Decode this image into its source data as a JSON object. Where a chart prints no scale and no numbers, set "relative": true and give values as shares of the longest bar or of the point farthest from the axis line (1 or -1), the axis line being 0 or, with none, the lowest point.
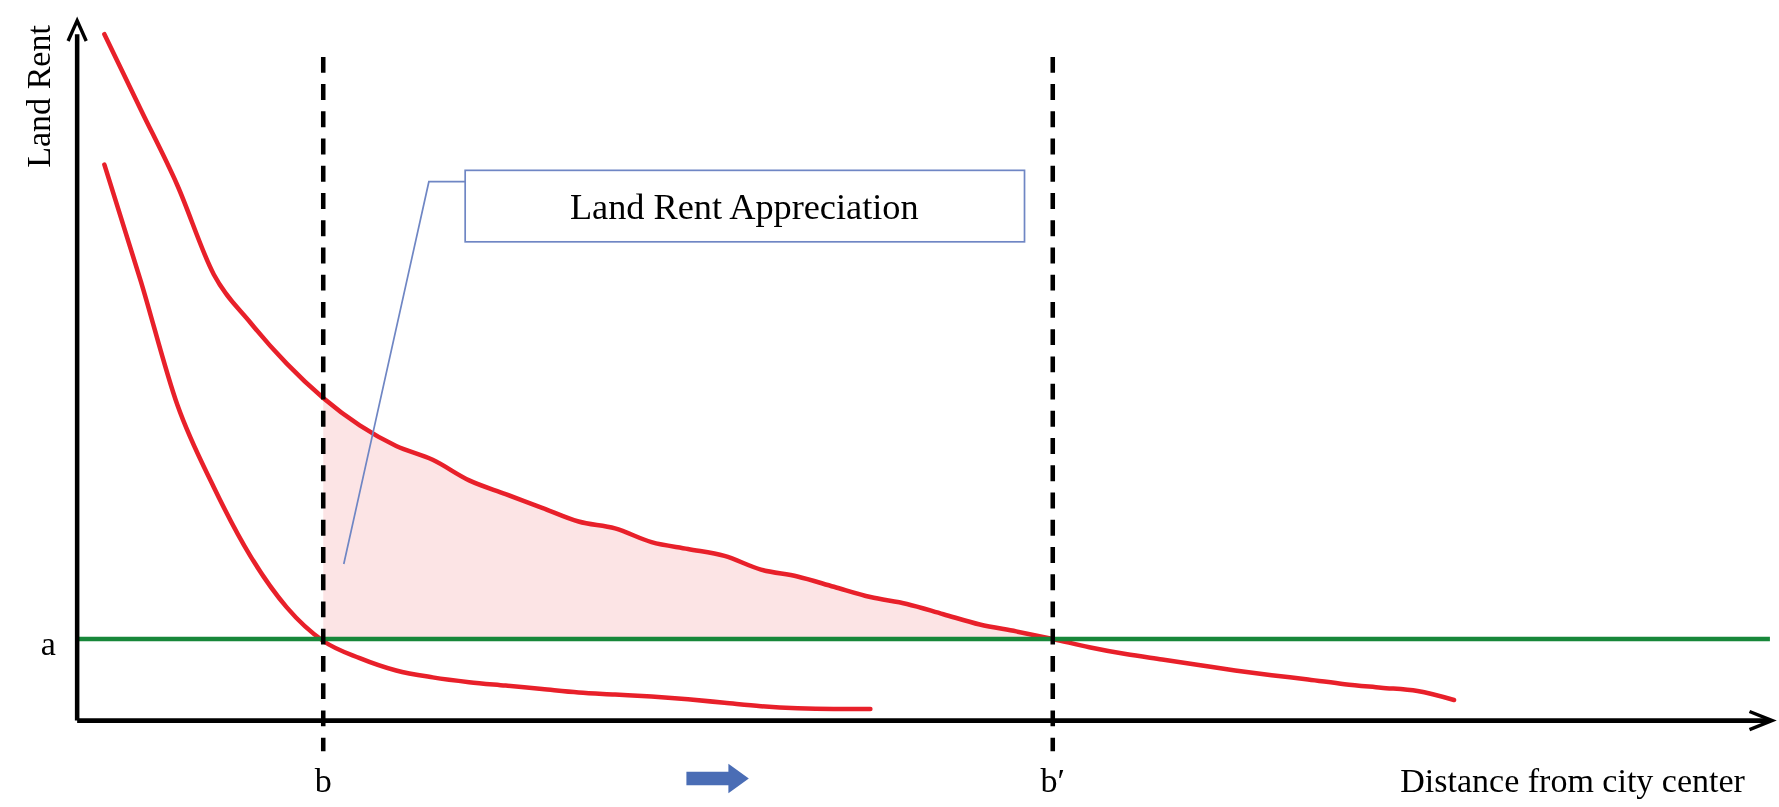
{
  "chart_data": {
    "type": "line",
    "relative": true,
    "xlabel": "Distance from city center",
    "ylabel": "Land Rent",
    "categories": [
      null,
      null,
      null,
      null,
      null,
      null,
      "b",
      null,
      null,
      null,
      null,
      null,
      null,
      null,
      null,
      null,
      null,
      null,
      null,
      null,
      null,
      null,
      null,
      null,
      null,
      null,
      "b′",
      null,
      null,
      null,
      null,
      null,
      null,
      null,
      null,
      null,
      null,
      null,
      null,
      null,
      null,
      null,
      null,
      null,
      null,
      null
    ],
    "series": [
      {
        "color": "#e8202a",
        "values": [
          1.0,
          0.89,
          0.78,
          0.65,
          0.58,
          0.52,
          0.47,
          0.43,
          0.4,
          0.38,
          0.35,
          0.33,
          0.31,
          0.29,
          0.28,
          0.26,
          0.25,
          0.24,
          0.22,
          0.21,
          0.195,
          0.18,
          0.17,
          0.155,
          0.14,
          0.13,
          0.119,
          0.107,
          0.097,
          0.089,
          0.081,
          0.073,
          0.066,
          0.06,
          0.053,
          0.048,
          0.043,
          0.03,
          null,
          null,
          null,
          null,
          null,
          null,
          null,
          null
        ],
        "lower": [
          null,
          null,
          null,
          null,
          null,
          null,
          0.119,
          0.119,
          0.119,
          0.119,
          0.119,
          0.119,
          0.119,
          0.119,
          0.119,
          0.119,
          0.119,
          0.119,
          0.119,
          0.119,
          0.119,
          0.119,
          0.119,
          0.119,
          0.119,
          0.119,
          0.119,
          null,
          null,
          null,
          null,
          null,
          null,
          null,
          null,
          null,
          null,
          null,
          null,
          null,
          null,
          null,
          null,
          null,
          null,
          null
        ],
        "upper": [
          null,
          null,
          null,
          null,
          null,
          null,
          0.47,
          0.43,
          0.4,
          0.38,
          0.35,
          0.33,
          0.31,
          0.29,
          0.28,
          0.26,
          0.25,
          0.24,
          0.22,
          0.21,
          0.195,
          0.18,
          0.17,
          0.155,
          0.14,
          0.13,
          0.119,
          null,
          null,
          null,
          null,
          null,
          null,
          null,
          null,
          null,
          null,
          null,
          null,
          null,
          null,
          null,
          null,
          null,
          null,
          null
        ]
      },
      {
        "color": "#e8202a",
        "values": [
          0.81,
          0.64,
          0.46,
          0.34,
          0.24,
          0.165,
          0.116,
          0.091,
          0.073,
          0.063,
          0.056,
          0.051,
          0.046,
          0.041,
          0.038,
          0.035,
          0.031,
          0.026,
          0.021,
          0.018,
          0.017,
          0.017,
          null,
          null,
          null,
          null,
          null,
          null,
          null,
          null,
          null,
          null,
          null,
          null,
          null,
          null,
          null,
          null,
          null,
          null,
          null,
          null,
          null,
          null,
          null,
          null
        ]
      }
    ],
    "ref_lines": [
      {
        "axis": "y",
        "value": 0.119,
        "label": "a",
        "color": "#17873a",
        "line_style": "solid"
      },
      {
        "axis": "x",
        "value": "b",
        "color": "#000000",
        "line_style": "dashed"
      },
      {
        "axis": "x",
        "value": "b′",
        "color": "#000000",
        "line_style": "dashed"
      }
    ],
    "annotations": [
      "Land Rent Appreciation"
    ]
  }
}
